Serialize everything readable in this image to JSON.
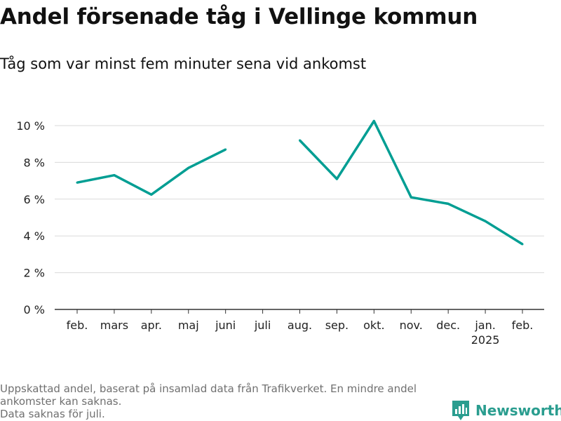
{
  "header": {
    "title": "Andel försenade tåg i Vellinge kommun",
    "subtitle": "Tåg som var minst fem minuter sena vid ankomst"
  },
  "notes": {
    "lines": [
      "Uppskattad andel, baserat på insamlad data från Trafikverket. En mindre andel ankomster kan saknas.",
      "Data saknas för juli."
    ]
  },
  "brand": {
    "name": "Newsworthy",
    "icon": "newsworthy-logo-icon",
    "color": "#2a9d8f"
  },
  "colors": {
    "line": "#009e93",
    "grid": "#d9d9d9",
    "axis": "#333333",
    "text": "#222222"
  },
  "chart_data": {
    "type": "line",
    "title": "Andel försenade tåg i Vellinge kommun",
    "subtitle": "Tåg som var minst fem minuter sena vid ankomst",
    "categories": [
      "feb.",
      "mars",
      "apr.",
      "maj",
      "juni",
      "juli",
      "aug.",
      "sep.",
      "okt.",
      "nov.",
      "dec.",
      "jan.",
      "feb."
    ],
    "category_sublabels": [
      "",
      "",
      "",
      "",
      "",
      "",
      "",
      "",
      "",
      "",
      "",
      "2025",
      ""
    ],
    "series": [
      {
        "values": [
          6.9,
          7.3,
          6.25,
          7.7,
          8.7,
          null,
          9.2,
          7.1,
          10.25,
          6.1,
          5.75,
          4.8,
          3.55
        ]
      }
    ],
    "ylim": [
      0,
      10
    ],
    "yticks": [
      0,
      2,
      4,
      6,
      8,
      10
    ],
    "ytick_suffix": " %",
    "xlabel": "",
    "ylabel": "",
    "grid": true,
    "legend": "none"
  }
}
